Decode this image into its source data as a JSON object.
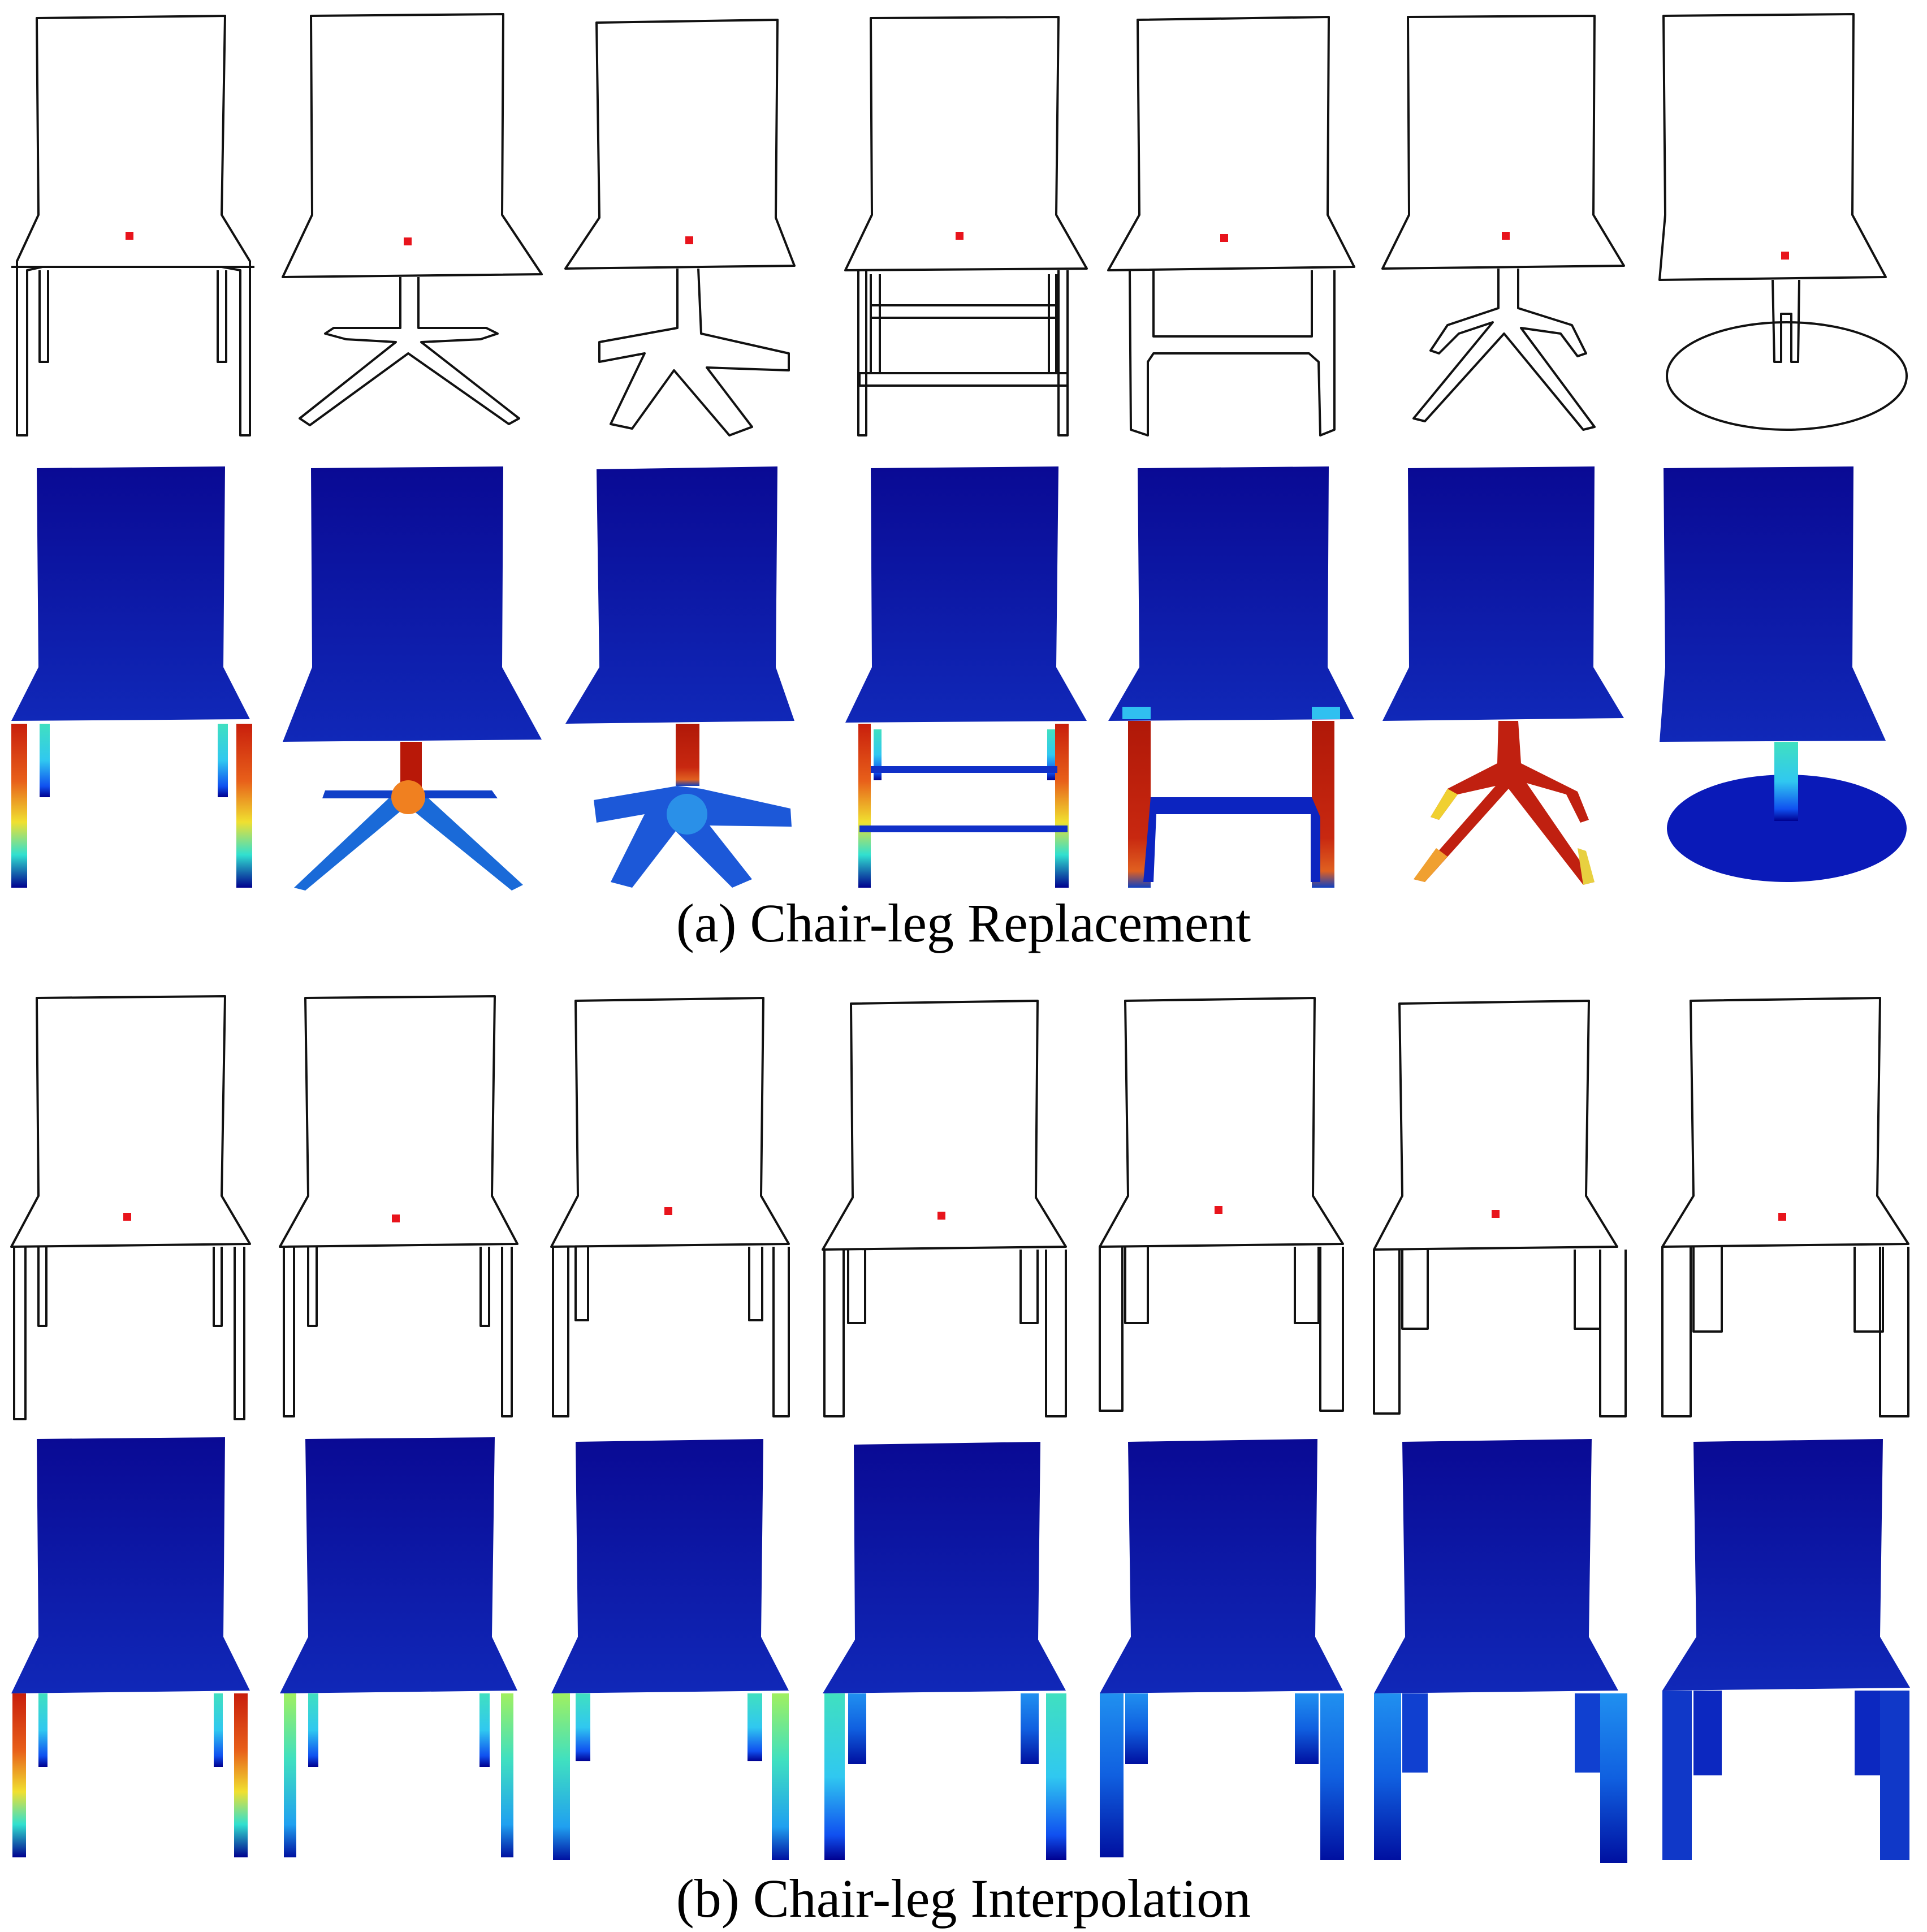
{
  "figure": {
    "caption_a": "(a) Chair-leg Replacement",
    "caption_b": "(b) Chair-leg Interpolation"
  },
  "panel_a": {
    "leg_styles": [
      "four-legs",
      "swivel-4-star",
      "swivel-5-star",
      "four-legs-two-stretchers",
      "sled-base",
      "spider-base",
      "pedestal-disk"
    ]
  },
  "panel_b": {
    "leg_thickness_steps": [
      0,
      1,
      2,
      3,
      4,
      5,
      6
    ]
  },
  "colors": {
    "outline": "#111111",
    "anchor_point": "#e8141c",
    "heatmap_low": "#00008f",
    "heatmap_mid_low": "#1060ff",
    "heatmap_mid": "#30e0d0",
    "heatmap_mid_high": "#f0e030",
    "heatmap_high": "#c81e0c"
  }
}
